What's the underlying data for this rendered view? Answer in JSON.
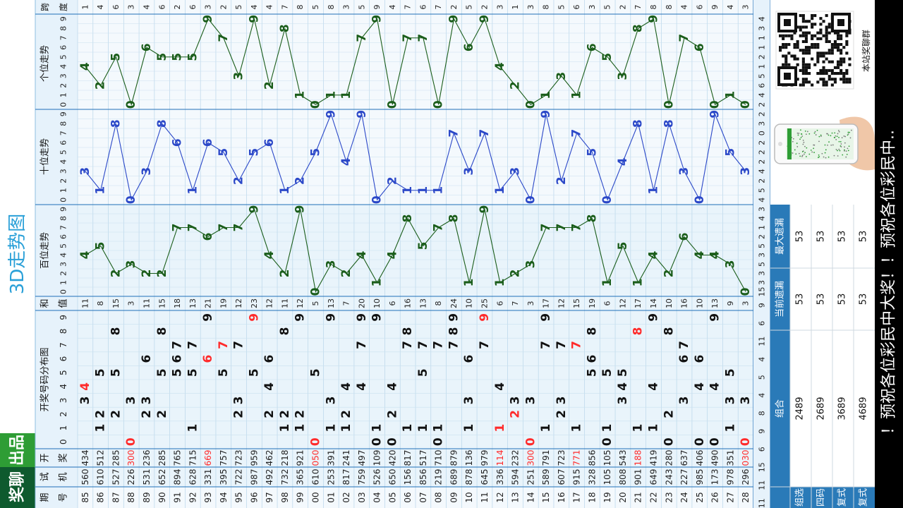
{
  "app": {
    "title": "3D走势图",
    "brand": {
      "part1": "奖聊",
      "part2": "出品"
    },
    "marquee": "！预祝各位彩民中大奖！！预祝各位彩民中..",
    "qr_caption": "本站奖聊群"
  },
  "labels": {
    "period": "期号",
    "machine": "试机",
    "draw": "开奖",
    "dist_title": "开奖号码分布图",
    "sum": "和值",
    "hundreds_trend": "百位走势",
    "tens_trend": "十位走势",
    "units_trend": "个位走势",
    "span": "跨度"
  },
  "colors": {
    "accent_blue": "#1f6fb8",
    "hot_red": "#ff2b2b",
    "hundreds_line": "#1a5d1a",
    "tens_line": "#2b48c8",
    "units_line": "#1a5d1a",
    "header_bg": "#e6f2fb",
    "brand_green": "#2e9d35",
    "brand_dark": "#0e5a2e"
  },
  "draws": [
    {
      "period": "85",
      "machine": "560",
      "draw": "434",
      "sum": "11",
      "span": "1"
    },
    {
      "period": "86",
      "machine": "610",
      "draw": "512",
      "sum": "8",
      "span": "4"
    },
    {
      "period": "87",
      "machine": "527",
      "draw": "285",
      "sum": "15",
      "span": "6"
    },
    {
      "period": "88",
      "machine": "226",
      "draw": "300",
      "sum": "3",
      "span": "3"
    },
    {
      "period": "89",
      "machine": "531",
      "draw": "236",
      "sum": "11",
      "span": "4"
    },
    {
      "period": "90",
      "machine": "652",
      "draw": "285",
      "sum": "15",
      "span": "6"
    },
    {
      "period": "91",
      "machine": "894",
      "draw": "765",
      "sum": "18",
      "span": "2"
    },
    {
      "period": "92",
      "machine": "628",
      "draw": "715",
      "sum": "13",
      "span": "6"
    },
    {
      "period": "93",
      "machine": "331",
      "draw": "669",
      "sum": "21",
      "span": "3"
    },
    {
      "period": "94",
      "machine": "395",
      "draw": "757",
      "sum": "19",
      "span": "2"
    },
    {
      "period": "95",
      "machine": "722",
      "draw": "723",
      "sum": "12",
      "span": "5"
    },
    {
      "period": "96",
      "machine": "987",
      "draw": "959",
      "sum": "23",
      "span": "4"
    },
    {
      "period": "97",
      "machine": "492",
      "draw": "462",
      "sum": "12",
      "span": "4"
    },
    {
      "period": "98",
      "machine": "732",
      "draw": "218",
      "sum": "11",
      "span": "7"
    },
    {
      "period": "99",
      "machine": "365",
      "draw": "921",
      "sum": "12",
      "span": "8"
    },
    {
      "period": "00",
      "machine": "610",
      "draw": "050",
      "sum": "5",
      "span": "5"
    },
    {
      "period": "01",
      "machine": "253",
      "draw": "391",
      "sum": "13",
      "span": "8"
    },
    {
      "period": "02",
      "machine": "817",
      "draw": "241",
      "sum": "7",
      "span": "3"
    },
    {
      "period": "03",
      "machine": "759",
      "draw": "497",
      "sum": "20",
      "span": "5"
    },
    {
      "period": "04",
      "machine": "526",
      "draw": "109",
      "sum": "10",
      "span": "9"
    },
    {
      "period": "05",
      "machine": "650",
      "draw": "420",
      "sum": "6",
      "span": "4"
    },
    {
      "period": "06",
      "machine": "156",
      "draw": "817",
      "sum": "16",
      "span": "7"
    },
    {
      "period": "07",
      "machine": "856",
      "draw": "517",
      "sum": "13",
      "span": "6"
    },
    {
      "period": "08",
      "machine": "219",
      "draw": "710",
      "sum": "8",
      "span": "7"
    },
    {
      "period": "09",
      "machine": "689",
      "draw": "879",
      "sum": "24",
      "span": "2"
    },
    {
      "period": "10",
      "machine": "878",
      "draw": "136",
      "sum": "10",
      "span": "5"
    },
    {
      "period": "11",
      "machine": "645",
      "draw": "979",
      "sum": "25",
      "span": "2"
    },
    {
      "period": "12",
      "machine": "336",
      "draw": "114",
      "sum": "6",
      "span": "3"
    },
    {
      "period": "13",
      "machine": "594",
      "draw": "232",
      "sum": "7",
      "span": "1"
    },
    {
      "period": "14",
      "machine": "251",
      "draw": "300",
      "sum": "3",
      "span": "3"
    },
    {
      "period": "15",
      "machine": "589",
      "draw": "791",
      "sum": "17",
      "span": "8"
    },
    {
      "period": "16",
      "machine": "607",
      "draw": "723",
      "sum": "12",
      "span": "5"
    },
    {
      "period": "17",
      "machine": "915",
      "draw": "771",
      "sum": "15",
      "span": "6"
    },
    {
      "period": "18",
      "machine": "328",
      "draw": "856",
      "sum": "19",
      "span": "3"
    },
    {
      "period": "19",
      "machine": "105",
      "draw": "105",
      "sum": "6",
      "span": "5"
    },
    {
      "period": "20",
      "machine": "808",
      "draw": "543",
      "sum": "12",
      "span": "2"
    },
    {
      "period": "21",
      "machine": "901",
      "draw": "188",
      "sum": "17",
      "span": "7"
    },
    {
      "period": "22",
      "machine": "649",
      "draw": "419",
      "sum": "14",
      "span": "8"
    },
    {
      "period": "23",
      "machine": "243",
      "draw": "280",
      "sum": "10",
      "span": "8"
    },
    {
      "period": "24",
      "machine": "227",
      "draw": "637",
      "sum": "16",
      "span": "4"
    },
    {
      "period": "25",
      "machine": "985",
      "draw": "406",
      "sum": "10",
      "span": "6"
    },
    {
      "period": "26",
      "machine": "173",
      "draw": "490",
      "sum": "13",
      "span": "9"
    },
    {
      "period": "27",
      "machine": "978",
      "draw": "351",
      "sum": "9",
      "span": "4"
    },
    {
      "period": "28",
      "machine": "296",
      "draw": "030",
      "sum": "3",
      "span": "3"
    }
  ],
  "omission_rows": {
    "dist": [
      "11",
      "11",
      "15",
      "6",
      "9",
      "8",
      "4",
      "5",
      "4",
      "11",
      "6",
      "9"
    ],
    "hundreds": [
      "15",
      "3",
      "3",
      "5",
      "3",
      "5",
      "2",
      "1",
      "4",
      "3"
    ],
    "tens": [
      "4",
      "5",
      "2",
      "4",
      "2",
      "2",
      "2",
      "0",
      "3",
      "2"
    ],
    "units": [
      "2",
      "4",
      "6",
      "5",
      "1",
      "2",
      "1",
      "1",
      "3",
      "4"
    ]
  },
  "stats": {
    "headers": [
      "组合",
      "当前遗漏",
      "最大遗漏"
    ],
    "rows": [
      {
        "type": "组选",
        "combo": "2489",
        "current": "53",
        "max": "53"
      },
      {
        "type": "四码",
        "combo": "2689",
        "current": "53",
        "max": "53"
      },
      {
        "type": "复式",
        "combo": "3689",
        "current": "53",
        "max": "53"
      },
      {
        "type": "复式",
        "combo": "4689",
        "current": "53",
        "max": "53"
      }
    ]
  }
}
